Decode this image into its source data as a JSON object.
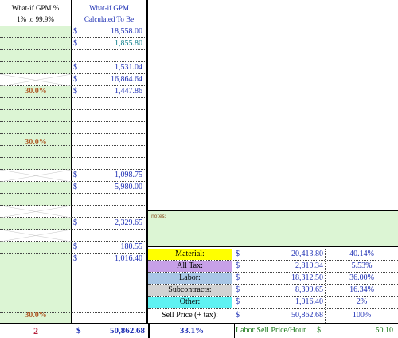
{
  "header": {
    "col1_line1": "What-if GPM %",
    "col1_line2": "1% to 99.9%",
    "col2_line1": "What-if GPM",
    "col2_line2": "Calculated To Be"
  },
  "currency_symbol": "$",
  "amounts": {
    "r1": "18,558.00",
    "r2": "1,855.80",
    "r5": "1,531.04",
    "r6": "16,864.64",
    "r7": "1,447.86",
    "r13": "1,098.75",
    "r14": "5,980.00",
    "r17": "2,329.65",
    "r19": "180.55",
    "r20": "1,016.40"
  },
  "percents": {
    "r7": "30.0%",
    "r11": "30.0%",
    "r25": "30.0%"
  },
  "notes_label": "notes:",
  "summary": [
    {
      "label": "Material:",
      "amount": "20,413.80",
      "pct": "40.14%",
      "color": "#ffff00"
    },
    {
      "label": "All Tax:",
      "amount": "2,810.34",
      "pct": "5.53%",
      "color": "#c7a0e8"
    },
    {
      "label": "Labor:",
      "amount": "18,312.50",
      "pct": "36.00%",
      "color": "#a8c6e6"
    },
    {
      "label": "Subcontracts:",
      "amount": "8,309.65",
      "pct": "16.34%",
      "color": "#d2d2d2"
    },
    {
      "label": "Other:",
      "amount": "1,016.40",
      "pct": "2%",
      "color": "#5ff2f2"
    },
    {
      "label": "Sell Price (+ tax):",
      "amount": "50,862.68",
      "pct": "100%",
      "color": "#ffffff"
    }
  ],
  "footer": {
    "count": "2",
    "total": "50,862.68",
    "gpm": "33.1%",
    "labor_label": "Labor Sell Price/Hour",
    "labor_value": "50.10"
  }
}
